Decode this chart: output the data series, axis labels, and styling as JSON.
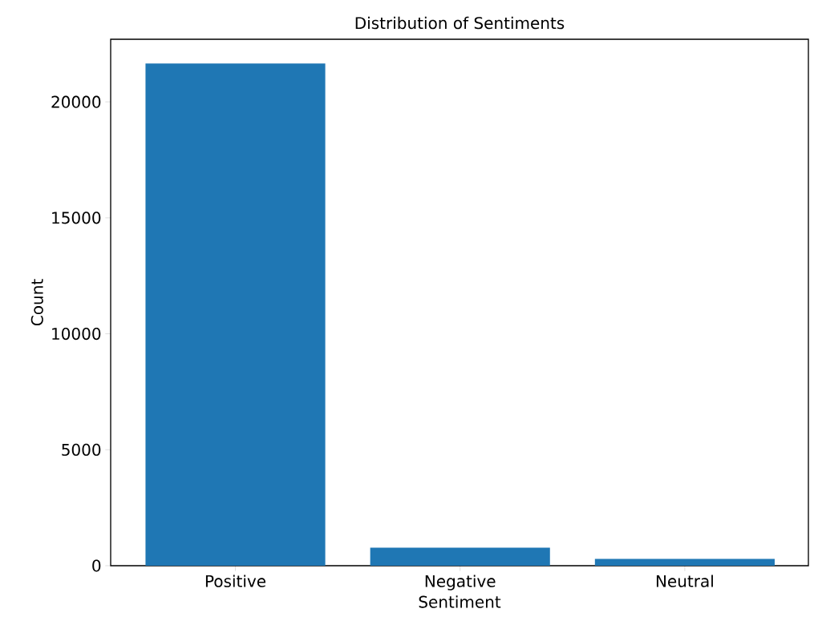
{
  "chart_data": {
    "type": "bar",
    "title": "Distribution of Sentiments",
    "xlabel": "Sentiment",
    "ylabel": "Count",
    "categories": [
      "Positive",
      "Negative",
      "Neutral"
    ],
    "values": [
      21650,
      780,
      290
    ],
    "color": "#1f77b4",
    "ylim": [
      0,
      22700
    ],
    "yticks": [
      0,
      5000,
      10000,
      15000,
      20000
    ]
  }
}
